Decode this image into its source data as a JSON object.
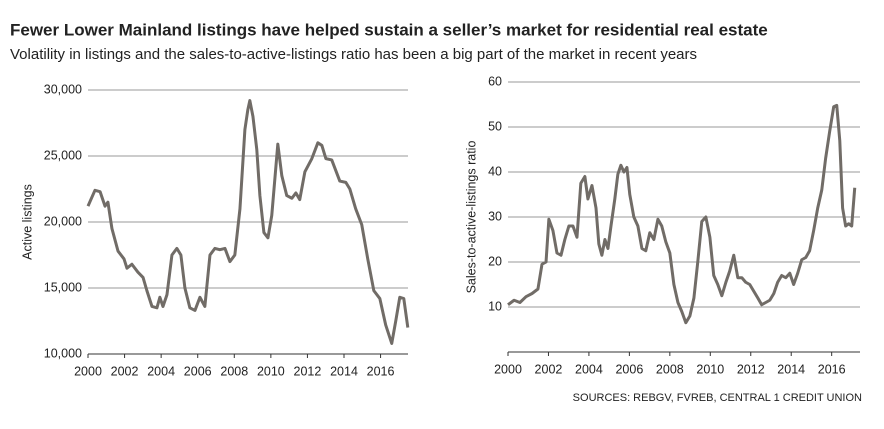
{
  "header": {
    "title": "Fewer Lower Mainland listings have helped sustain a seller’s market for residential real estate",
    "subtitle": "Volatility in listings and the sales-to-active-listings ratio has been a big part of the market in recent years",
    "source": "SOURCES: REBGV, FVREB, CENTRAL 1 CREDIT UNION"
  },
  "chart_data": [
    {
      "type": "line",
      "y_label": "Active listings",
      "color": "#716c67",
      "x": [
        2000.0,
        2000.38,
        2000.66,
        2000.93,
        2001.09,
        2001.31,
        2001.64,
        2001.97,
        2002.13,
        2002.4,
        2002.73,
        2003.01,
        2003.22,
        2003.5,
        2003.77,
        2003.93,
        2004.1,
        2004.32,
        2004.59,
        2004.86,
        2005.08,
        2005.3,
        2005.57,
        2005.85,
        2006.12,
        2006.39,
        2006.67,
        2006.94,
        2007.21,
        2007.49,
        2007.76,
        2008.03,
        2008.31,
        2008.58,
        2008.74,
        2008.85,
        2009.02,
        2009.23,
        2009.4,
        2009.62,
        2009.84,
        2010.05,
        2010.38,
        2010.6,
        2010.87,
        2011.15,
        2011.37,
        2011.58,
        2011.86,
        2012.24,
        2012.57,
        2012.79,
        2013.01,
        2013.33,
        2013.77,
        2014.1,
        2014.32,
        2014.64,
        2014.97,
        2015.3,
        2015.63,
        2015.96,
        2016.28,
        2016.61,
        2016.83,
        2017.05,
        2017.27,
        2017.49
      ],
      "values": [
        21200,
        22400,
        22300,
        21200,
        21500,
        19500,
        17800,
        17200,
        16500,
        16800,
        16200,
        15800,
        14800,
        13600,
        13500,
        14300,
        13600,
        14500,
        17500,
        18000,
        17500,
        15000,
        13500,
        13300,
        14300,
        13600,
        17500,
        18000,
        17900,
        18000,
        17000,
        17500,
        21000,
        27000,
        28500,
        29200,
        28000,
        25500,
        22000,
        19200,
        18800,
        20500,
        25900,
        23500,
        22000,
        21800,
        22200,
        21700,
        23800,
        24800,
        26000,
        25800,
        24800,
        24700,
        23100,
        23000,
        22500,
        21000,
        19800,
        17200,
        14800,
        14200,
        12200,
        10800,
        12500,
        14300,
        14200,
        12000
      ],
      "xlim": [
        2000,
        2017.5
      ],
      "xticks": [
        2000,
        2002,
        2004,
        2006,
        2008,
        2010,
        2012,
        2014,
        2016
      ],
      "ylim": [
        10000,
        30000
      ],
      "yticks": [
        {
          "value": 10000,
          "label": "10,000"
        },
        {
          "value": 15000,
          "label": "15,000"
        },
        {
          "value": 20000,
          "label": "20,000"
        },
        {
          "value": 25000,
          "label": "25,000"
        },
        {
          "value": 30000,
          "label": "30,000"
        }
      ],
      "grid": true
    },
    {
      "type": "line",
      "y_label": "Sales-to-active-listings ratio",
      "color": "#716c67",
      "x": [
        2000.0,
        2000.3,
        2000.59,
        2000.89,
        2001.19,
        2001.48,
        2001.68,
        2001.88,
        2002.02,
        2002.22,
        2002.42,
        2002.62,
        2002.81,
        2003.01,
        2003.21,
        2003.41,
        2003.6,
        2003.8,
        2003.95,
        2004.15,
        2004.35,
        2004.49,
        2004.64,
        2004.79,
        2004.94,
        2005.09,
        2005.28,
        2005.43,
        2005.58,
        2005.73,
        2005.88,
        2006.02,
        2006.22,
        2006.42,
        2006.62,
        2006.81,
        2007.01,
        2007.21,
        2007.41,
        2007.6,
        2007.8,
        2008.0,
        2008.2,
        2008.4,
        2008.59,
        2008.79,
        2008.99,
        2009.19,
        2009.38,
        2009.58,
        2009.78,
        2009.98,
        2010.17,
        2010.37,
        2010.57,
        2010.77,
        2010.96,
        2011.16,
        2011.36,
        2011.56,
        2011.75,
        2011.95,
        2012.15,
        2012.35,
        2012.54,
        2012.74,
        2012.94,
        2013.14,
        2013.33,
        2013.53,
        2013.73,
        2013.93,
        2014.12,
        2014.32,
        2014.52,
        2014.72,
        2014.91,
        2015.11,
        2015.31,
        2015.51,
        2015.7,
        2015.9,
        2016.1,
        2016.25,
        2016.4,
        2016.54,
        2016.69,
        2016.84,
        2016.99,
        2017.14
      ],
      "values": [
        10.5,
        11.5,
        11,
        12.3,
        13,
        14,
        19.5,
        20,
        29.5,
        27,
        22,
        21.5,
        25,
        28,
        28,
        25.5,
        37.5,
        39,
        34,
        37,
        32,
        24,
        21.5,
        25,
        23,
        28,
        34,
        39.5,
        41.5,
        40,
        41,
        35,
        30,
        28,
        23,
        22.5,
        26.5,
        25,
        29.5,
        28,
        24.5,
        22,
        15,
        11,
        9,
        6.5,
        8,
        12,
        20,
        29,
        30,
        25.5,
        17,
        15,
        12.5,
        15.5,
        18,
        21.5,
        16.5,
        16.5,
        15.5,
        15,
        13.5,
        12,
        10.5,
        11,
        11.5,
        13,
        15.5,
        17,
        16.5,
        17.5,
        15,
        17.5,
        20.5,
        21,
        22.5,
        27,
        32,
        36,
        43,
        49,
        54.5,
        54.8,
        47,
        32,
        28,
        28.5,
        28,
        36.5
      ],
      "xlim": [
        2000,
        2017.4
      ],
      "xticks": [
        2000,
        2002,
        2004,
        2006,
        2008,
        2010,
        2012,
        2014,
        2016
      ],
      "ylim": [
        0,
        60
      ],
      "yticks": [
        10,
        20,
        30,
        40,
        50,
        60
      ],
      "grid": true
    }
  ]
}
